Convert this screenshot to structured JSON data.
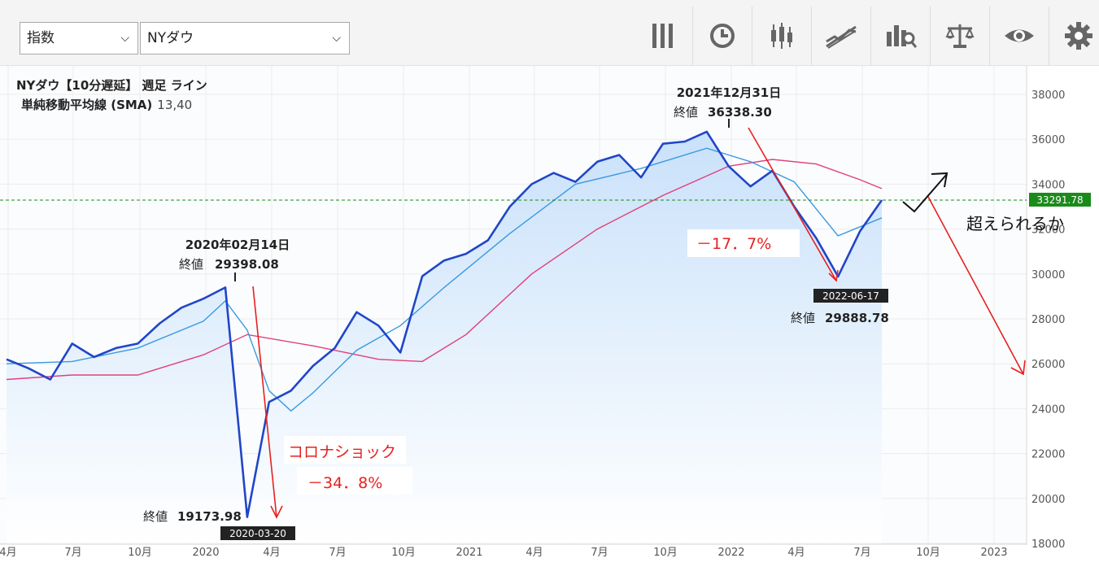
{
  "toolbar": {
    "market_select": "指数",
    "symbol_select": "NYダウ",
    "tools": [
      "bars-icon",
      "clock-icon",
      "candlestick-icon",
      "trendline-icon",
      "indicator-search-icon",
      "balance-icon",
      "eye-icon",
      "gear-icon"
    ]
  },
  "header": {
    "title_line": "NYダウ【10分遅延】 週足 ライン",
    "sma_label": "単純移動平均線 (SMA)",
    "sma_params": "13,40"
  },
  "colors": {
    "price_line": "#2046c8",
    "sma13": "#3a9ae0",
    "sma40": "#e0407a",
    "area_fill": "#dcecfb",
    "current_line": "#1a8a1a",
    "annotation_red": "#e82020"
  },
  "annotations": {
    "feb2020_date": "2020年02月14日",
    "feb2020_close_label": "終値",
    "feb2020_close_value": "29398.08",
    "mar2020_close_label": "終値",
    "mar2020_close_value": "19173.98",
    "mar2020_date_badge": "2020-03-20",
    "dec2021_date": "2021年12月31日",
    "dec2021_close_label": "終値",
    "dec2021_close_value": "36338.30",
    "jun2022_date_badge": "2022-06-17",
    "jun2022_close_label": "終値",
    "jun2022_close_value": "29888.78",
    "corona_text": "コロナショック",
    "corona_pct": "－34．8%",
    "drop_pct": "－17．7%",
    "question_text": "超えられるか",
    "current_price": "33291.78"
  },
  "chart_data": {
    "type": "line",
    "title": "NYダウ【10分遅延】 週足 ライン",
    "ylim": [
      18000,
      38000
    ],
    "y_ticks": [
      "38000",
      "36000",
      "34000",
      "32000",
      "30000",
      "28000",
      "26000",
      "24000",
      "22000",
      "20000",
      "18000"
    ],
    "x_ticks": [
      "4月",
      "7月",
      "10月",
      "2020",
      "4月",
      "7月",
      "10月",
      "2021",
      "4月",
      "7月",
      "10月",
      "2022",
      "4月",
      "7月",
      "10月",
      "2023"
    ],
    "grid": true,
    "current_value": 33291.78,
    "series": [
      {
        "name": "NYダウ",
        "x": [
          "2019-04",
          "2019-05",
          "2019-06",
          "2019-07",
          "2019-08",
          "2019-09",
          "2019-10",
          "2019-11",
          "2019-12",
          "2020-01",
          "2020-02",
          "2020-03",
          "2020-04",
          "2020-05",
          "2020-06",
          "2020-07",
          "2020-08",
          "2020-09",
          "2020-10",
          "2020-11",
          "2020-12",
          "2021-01",
          "2021-02",
          "2021-03",
          "2021-04",
          "2021-05",
          "2021-06",
          "2021-07",
          "2021-08",
          "2021-09",
          "2021-10",
          "2021-11",
          "2021-12",
          "2022-01",
          "2022-02",
          "2022-03",
          "2022-04",
          "2022-05",
          "2022-06",
          "2022-07",
          "2022-08"
        ],
        "values": [
          26200,
          25800,
          25300,
          26900,
          26300,
          26700,
          26900,
          27800,
          28500,
          28900,
          29398,
          19174,
          24300,
          24800,
          25900,
          26700,
          28300,
          27700,
          26500,
          29900,
          30600,
          30900,
          31500,
          33000,
          34000,
          34500,
          34100,
          35000,
          35300,
          34300,
          35800,
          35900,
          36338,
          34800,
          33900,
          34600,
          33000,
          31600,
          29889,
          31900,
          33291
        ]
      },
      {
        "name": "SMA13",
        "x": [
          "2019-04",
          "2019-07",
          "2019-10",
          "2020-01",
          "2020-02",
          "2020-03",
          "2020-04",
          "2020-05",
          "2020-06",
          "2020-08",
          "2020-10",
          "2020-12",
          "2021-03",
          "2021-06",
          "2021-09",
          "2021-12",
          "2022-02",
          "2022-04",
          "2022-06",
          "2022-08"
        ],
        "values": [
          26000,
          26100,
          26700,
          27900,
          28800,
          27500,
          24800,
          23900,
          24700,
          26600,
          27700,
          29400,
          31800,
          34000,
          34700,
          35600,
          35000,
          34100,
          31700,
          32500
        ]
      },
      {
        "name": "SMA40",
        "x": [
          "2019-04",
          "2019-07",
          "2019-10",
          "2020-01",
          "2020-03",
          "2020-06",
          "2020-09",
          "2020-11",
          "2021-01",
          "2021-04",
          "2021-07",
          "2021-10",
          "2022-01",
          "2022-03",
          "2022-05",
          "2022-07",
          "2022-08"
        ],
        "values": [
          25300,
          25500,
          25500,
          26400,
          27300,
          26800,
          26200,
          26100,
          27300,
          30000,
          32000,
          33500,
          34800,
          35100,
          34900,
          34200,
          33800
        ]
      }
    ]
  }
}
